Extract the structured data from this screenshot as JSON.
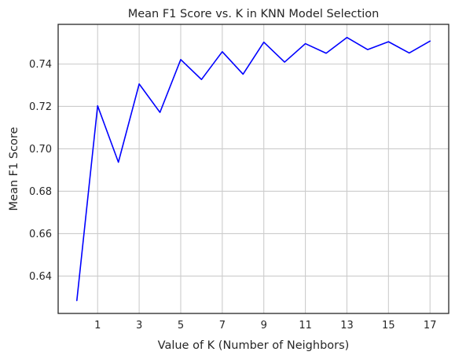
{
  "chart_data": {
    "type": "line",
    "title": "Mean F1 Score vs. K in KNN Model Selection",
    "xlabel": "Value of K (Number of Neighbors)",
    "ylabel": "Mean F1 Score",
    "x": [
      0,
      1,
      2,
      3,
      4,
      5,
      6,
      7,
      8,
      9,
      10,
      11,
      12,
      13,
      14,
      15,
      16,
      17
    ],
    "series": [
      {
        "values": [
          0.6285,
          0.7203,
          0.6937,
          0.7306,
          0.7172,
          0.7421,
          0.7327,
          0.7458,
          0.7352,
          0.7503,
          0.7409,
          0.7496,
          0.7451,
          0.7525,
          0.7468,
          0.7505,
          0.7452,
          0.7508
        ],
        "color": "#0000ff"
      }
    ],
    "xticks": [
      1,
      3,
      5,
      7,
      9,
      11,
      13,
      15,
      17
    ],
    "xtick_labels": [
      "1",
      "3",
      "5",
      "7",
      "9",
      "11",
      "13",
      "15",
      "17"
    ],
    "yticks": [
      0.64,
      0.66,
      0.68,
      0.7,
      0.72,
      0.74
    ],
    "ytick_labels": [
      "0.64",
      "0.66",
      "0.68",
      "0.70",
      "0.72",
      "0.74"
    ],
    "xlim": [
      -0.9,
      17.9
    ],
    "ylim": [
      0.6224,
      0.7587
    ],
    "grid": true,
    "grid_color": "#cccccc",
    "axis_color": "#262626"
  }
}
